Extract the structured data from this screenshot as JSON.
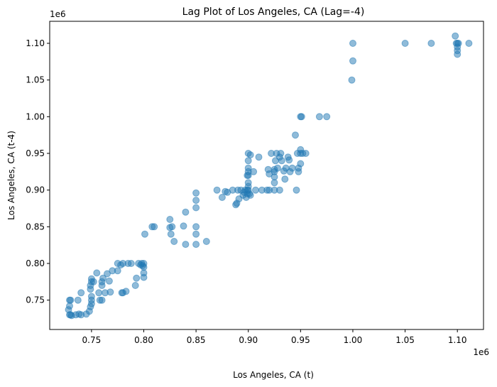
{
  "chart_data": {
    "type": "scatter",
    "title": "Lag Plot of Los Angeles, CA (Lag=-4)",
    "xlabel": "Los Angeles, CA (t)",
    "ylabel": "Los Angeles, CA (t-4)",
    "x_offset_label": "1e6",
    "y_offset_label": "1e6",
    "xlim": [
      710000,
      1125000
    ],
    "ylim": [
      710000,
      1130000
    ],
    "x_ticks": [
      750000,
      800000,
      850000,
      900000,
      950000,
      1000000,
      1050000,
      1100000
    ],
    "x_tick_labels": [
      "0.75",
      "0.80",
      "0.85",
      "0.90",
      "0.95",
      "1.00",
      "1.05",
      "1.10"
    ],
    "y_ticks": [
      750000,
      800000,
      850000,
      900000,
      950000,
      1000000,
      1050000,
      1100000
    ],
    "y_tick_labels": [
      "0.75",
      "0.80",
      "0.85",
      "0.90",
      "0.95",
      "1.00",
      "1.05",
      "1.10"
    ],
    "grid": false,
    "point_color": "#1f77b4",
    "point_alpha": 0.5,
    "series": [
      {
        "points": [
          [
            729000,
            750000
          ],
          [
            730000,
            750000
          ],
          [
            728000,
            737000
          ],
          [
            729000,
            742000
          ],
          [
            729000,
            730000
          ],
          [
            730000,
            730000
          ],
          [
            731000,
            729000
          ],
          [
            735000,
            730000
          ],
          [
            738000,
            731000
          ],
          [
            740000,
            730000
          ],
          [
            745000,
            731000
          ],
          [
            737000,
            750000
          ],
          [
            740000,
            760000
          ],
          [
            748000,
            735000
          ],
          [
            749000,
            741000
          ],
          [
            750000,
            745000
          ],
          [
            750000,
            750000
          ],
          [
            750000,
            755000
          ],
          [
            749000,
            765000
          ],
          [
            749000,
            770000
          ],
          [
            750000,
            775000
          ],
          [
            750000,
            779000
          ],
          [
            752000,
            775000
          ],
          [
            755000,
            787000
          ],
          [
            757000,
            760000
          ],
          [
            758000,
            750000
          ],
          [
            760000,
            750000
          ],
          [
            760000,
            770000
          ],
          [
            760000,
            775000
          ],
          [
            761000,
            780000
          ],
          [
            763000,
            760000
          ],
          [
            765000,
            786000
          ],
          [
            767000,
            776000
          ],
          [
            768000,
            761000
          ],
          [
            770000,
            790000
          ],
          [
            775000,
            790000
          ],
          [
            775000,
            800000
          ],
          [
            778000,
            798000
          ],
          [
            779000,
            760000
          ],
          [
            780000,
            760000
          ],
          [
            780000,
            800000
          ],
          [
            783000,
            762000
          ],
          [
            785000,
            800000
          ],
          [
            788000,
            800000
          ],
          [
            792000,
            770000
          ],
          [
            793000,
            780000
          ],
          [
            795000,
            800000
          ],
          [
            797000,
            798000
          ],
          [
            798000,
            800000
          ],
          [
            799000,
            797000
          ],
          [
            800000,
            800000
          ],
          [
            800000,
            795000
          ],
          [
            800000,
            781000
          ],
          [
            800000,
            787000
          ],
          [
            801000,
            840000
          ],
          [
            808000,
            850000
          ],
          [
            810000,
            850000
          ],
          [
            825000,
            860000
          ],
          [
            825000,
            849000
          ],
          [
            826000,
            840000
          ],
          [
            827000,
            850000
          ],
          [
            829000,
            830000
          ],
          [
            838000,
            851000
          ],
          [
            840000,
            826000
          ],
          [
            840000,
            870000
          ],
          [
            850000,
            850000
          ],
          [
            850000,
            840000
          ],
          [
            850000,
            826000
          ],
          [
            850000,
            876000
          ],
          [
            850000,
            886000
          ],
          [
            850000,
            896000
          ],
          [
            860000,
            830000
          ],
          [
            870000,
            900000
          ],
          [
            875000,
            890000
          ],
          [
            878000,
            898000
          ],
          [
            880000,
            897000
          ],
          [
            885000,
            900000
          ],
          [
            888000,
            880000
          ],
          [
            889000,
            882000
          ],
          [
            890000,
            900000
          ],
          [
            891000,
            888000
          ],
          [
            893000,
            900000
          ],
          [
            895000,
            893000
          ],
          [
            896000,
            897000
          ],
          [
            897000,
            900000
          ],
          [
            898000,
            890000
          ],
          [
            899000,
            895000
          ],
          [
            899000,
            900000
          ],
          [
            900000,
            900000
          ],
          [
            900000,
            905000
          ],
          [
            900000,
            910000
          ],
          [
            899000,
            920000
          ],
          [
            900000,
            920000
          ],
          [
            900000,
            925000
          ],
          [
            900000,
            930000
          ],
          [
            900000,
            940000
          ],
          [
            900000,
            950000
          ],
          [
            901000,
            895000
          ],
          [
            902000,
            893000
          ],
          [
            902000,
            948000
          ],
          [
            905000,
            925000
          ],
          [
            907000,
            900000
          ],
          [
            910000,
            945000
          ],
          [
            913000,
            900000
          ],
          [
            918000,
            900000
          ],
          [
            919000,
            928000
          ],
          [
            920000,
            922000
          ],
          [
            920000,
            900000
          ],
          [
            922000,
            950000
          ],
          [
            925000,
            925000
          ],
          [
            925000,
            900000
          ],
          [
            925000,
            910000
          ],
          [
            925000,
            918000
          ],
          [
            925000,
            928000
          ],
          [
            926000,
            940000
          ],
          [
            927000,
            950000
          ],
          [
            928000,
            930000
          ],
          [
            930000,
            900000
          ],
          [
            930000,
            945000
          ],
          [
            931000,
            950000
          ],
          [
            932000,
            940000
          ],
          [
            934000,
            926000
          ],
          [
            935000,
            915000
          ],
          [
            936000,
            930000
          ],
          [
            938000,
            945000
          ],
          [
            939000,
            941000
          ],
          [
            940000,
            925000
          ],
          [
            942000,
            930000
          ],
          [
            945000,
            975000
          ],
          [
            946000,
            900000
          ],
          [
            947000,
            950000
          ],
          [
            948000,
            925000
          ],
          [
            948000,
            930000
          ],
          [
            950000,
            950000
          ],
          [
            950000,
            955000
          ],
          [
            950000,
            936000
          ],
          [
            950000,
            1000000
          ],
          [
            951000,
            1000000
          ],
          [
            952000,
            950000
          ],
          [
            955000,
            950000
          ],
          [
            968000,
            1000000
          ],
          [
            975000,
            1000000
          ],
          [
            999000,
            1050000
          ],
          [
            1000000,
            1076000
          ],
          [
            1000000,
            1100000
          ],
          [
            1050000,
            1100000
          ],
          [
            1075000,
            1100000
          ],
          [
            1098000,
            1110000
          ],
          [
            1099000,
            1100000
          ],
          [
            1100000,
            1100000
          ],
          [
            1100000,
            1095000
          ],
          [
            1100000,
            1090000
          ],
          [
            1100000,
            1085000
          ],
          [
            1101000,
            1100000
          ],
          [
            1111000,
            1100000
          ]
        ]
      }
    ]
  }
}
